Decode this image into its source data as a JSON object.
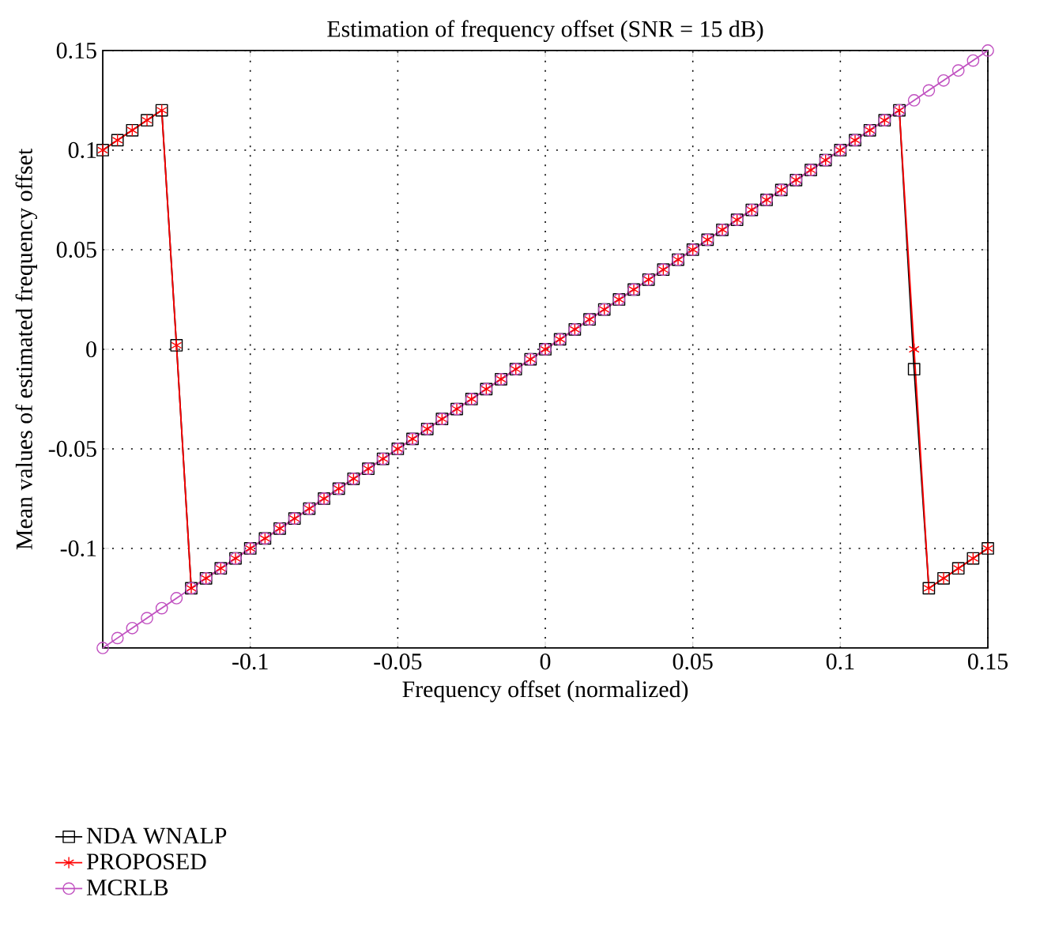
{
  "chart_data": {
    "type": "line",
    "title": "Estimation of frequency offset (SNR = 15 dB)",
    "xlabel": "Frequency offset (normalized)",
    "ylabel": "Mean values of estimated frequency offset",
    "x": [
      -0.15,
      -0.145,
      -0.14,
      -0.135,
      -0.13,
      -0.125,
      -0.12,
      -0.115,
      -0.11,
      -0.105,
      -0.1,
      -0.095,
      -0.09,
      -0.085,
      -0.08,
      -0.075,
      -0.07,
      -0.065,
      -0.06,
      -0.055,
      -0.05,
      -0.045,
      -0.04,
      -0.035,
      -0.03,
      -0.025,
      -0.02,
      -0.015,
      -0.01,
      -0.005,
      0,
      0.005,
      0.01,
      0.015,
      0.02,
      0.025,
      0.03,
      0.035,
      0.04,
      0.045,
      0.05,
      0.055,
      0.06,
      0.065,
      0.07,
      0.075,
      0.08,
      0.085,
      0.09,
      0.095,
      0.1,
      0.105,
      0.11,
      0.115,
      0.12,
      0.125,
      0.13,
      0.135,
      0.14,
      0.145,
      0.15
    ],
    "series": [
      {
        "name": "NDA WNALP",
        "color": "#000000",
        "marker": "square",
        "values": [
          0.1,
          0.105,
          0.11,
          0.115,
          0.12,
          0.002,
          -0.12,
          -0.115,
          -0.11,
          -0.105,
          -0.1,
          -0.095,
          -0.09,
          -0.085,
          -0.08,
          -0.075,
          -0.07,
          -0.065,
          -0.06,
          -0.055,
          -0.05,
          -0.045,
          -0.04,
          -0.035,
          -0.03,
          -0.025,
          -0.02,
          -0.015,
          -0.01,
          -0.005,
          0,
          0.005,
          0.01,
          0.015,
          0.02,
          0.025,
          0.03,
          0.035,
          0.04,
          0.045,
          0.05,
          0.055,
          0.06,
          0.065,
          0.07,
          0.075,
          0.08,
          0.085,
          0.09,
          0.095,
          0.1,
          0.105,
          0.11,
          0.115,
          0.12,
          -0.01,
          -0.12,
          -0.115,
          -0.11,
          -0.105,
          -0.1
        ]
      },
      {
        "name": "PROPOSED",
        "color": "#ff0000",
        "marker": "cross",
        "values": [
          0.1,
          0.105,
          0.11,
          0.115,
          0.12,
          0.002,
          -0.12,
          -0.115,
          -0.11,
          -0.105,
          -0.1,
          -0.095,
          -0.09,
          -0.085,
          -0.08,
          -0.075,
          -0.07,
          -0.065,
          -0.06,
          -0.055,
          -0.05,
          -0.045,
          -0.04,
          -0.035,
          -0.03,
          -0.025,
          -0.02,
          -0.015,
          -0.01,
          -0.005,
          0,
          0.005,
          0.01,
          0.015,
          0.02,
          0.025,
          0.03,
          0.035,
          0.04,
          0.045,
          0.05,
          0.055,
          0.06,
          0.065,
          0.07,
          0.075,
          0.08,
          0.085,
          0.09,
          0.095,
          0.1,
          0.105,
          0.11,
          0.115,
          0.12,
          0,
          -0.12,
          -0.115,
          -0.11,
          -0.105,
          -0.1
        ]
      },
      {
        "name": "MCRLB",
        "color": "#c050c0",
        "marker": "circle",
        "values": [
          -0.15,
          -0.145,
          -0.14,
          -0.135,
          -0.13,
          -0.125,
          -0.12,
          -0.115,
          -0.11,
          -0.105,
          -0.1,
          -0.095,
          -0.09,
          -0.085,
          -0.08,
          -0.075,
          -0.07,
          -0.065,
          -0.06,
          -0.055,
          -0.05,
          -0.045,
          -0.04,
          -0.035,
          -0.03,
          -0.025,
          -0.02,
          -0.015,
          -0.01,
          -0.005,
          0,
          0.005,
          0.01,
          0.015,
          0.02,
          0.025,
          0.03,
          0.035,
          0.04,
          0.045,
          0.05,
          0.055,
          0.06,
          0.065,
          0.07,
          0.075,
          0.08,
          0.085,
          0.09,
          0.095,
          0.1,
          0.105,
          0.11,
          0.115,
          0.12,
          0.125,
          0.13,
          0.135,
          0.14,
          0.145,
          0.15
        ]
      }
    ],
    "xlim": [
      -0.15,
      0.15
    ],
    "ylim": [
      -0.15,
      0.15
    ],
    "xticks": [
      -0.1,
      -0.05,
      0,
      0.05,
      0.1,
      0.15
    ],
    "yticks": [
      -0.1,
      -0.05,
      0,
      0.05,
      0.1,
      0.15
    ],
    "grid": true,
    "legend": "bottom left"
  }
}
